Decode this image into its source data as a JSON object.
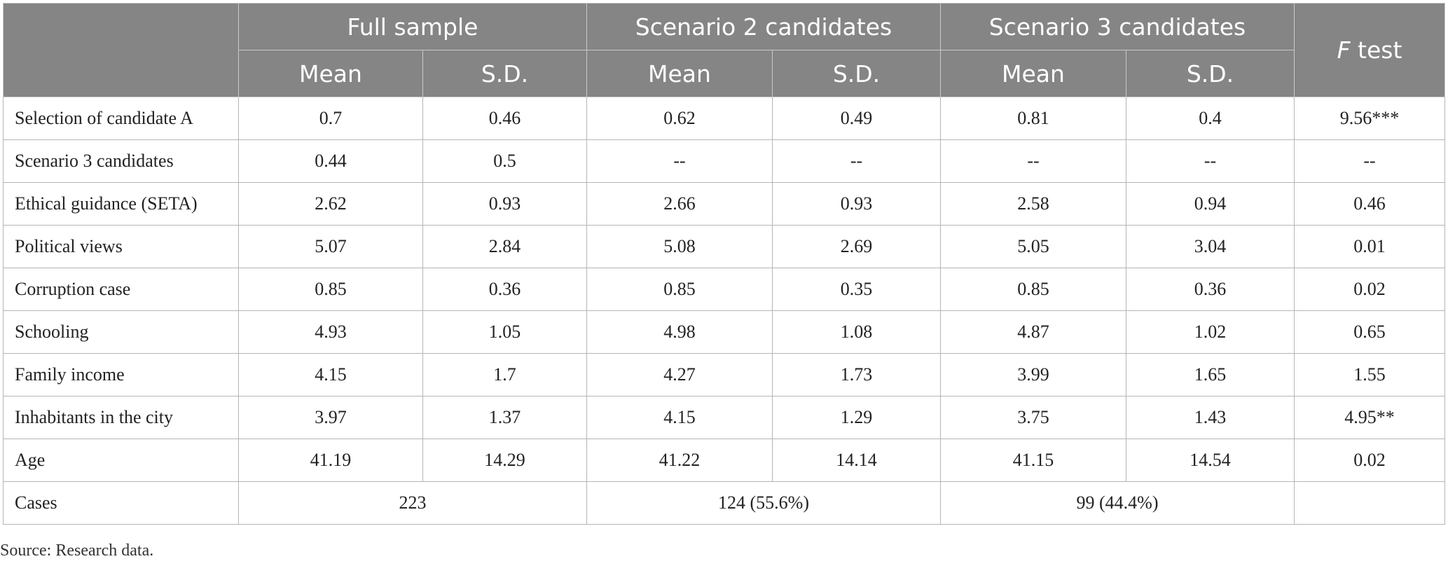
{
  "table": {
    "group_headers": [
      "Full sample",
      "Scenario 2 candidates",
      "Scenario 3 candidates"
    ],
    "ftest_header": {
      "italic_part": "F",
      "rest": " test"
    },
    "sub_headers": [
      "Mean",
      "S.D.",
      "Mean",
      "S.D.",
      "Mean",
      "S.D."
    ],
    "rows": [
      {
        "label": "Selection of candidate A",
        "cells": [
          "0.7",
          "0.46",
          "0.62",
          "0.49",
          "0.81",
          "0.4",
          "9.56***"
        ]
      },
      {
        "label": "Scenario 3 candidates",
        "cells": [
          "0.44",
          "0.5",
          "--",
          "--",
          "--",
          "--",
          "--"
        ]
      },
      {
        "label": "Ethical guidance (SETA)",
        "cells": [
          "2.62",
          "0.93",
          "2.66",
          "0.93",
          "2.58",
          "0.94",
          "0.46"
        ]
      },
      {
        "label": "Political views",
        "cells": [
          "5.07",
          "2.84",
          "5.08",
          "2.69",
          "5.05",
          "3.04",
          "0.01"
        ]
      },
      {
        "label": "Corruption case",
        "cells": [
          "0.85",
          "0.36",
          "0.85",
          "0.35",
          "0.85",
          "0.36",
          "0.02"
        ]
      },
      {
        "label": "Schooling",
        "cells": [
          "4.93",
          "1.05",
          "4.98",
          "1.08",
          "4.87",
          "1.02",
          "0.65"
        ]
      },
      {
        "label": "Family income",
        "cells": [
          "4.15",
          "1.7",
          "4.27",
          "1.73",
          "3.99",
          "1.65",
          "1.55"
        ]
      },
      {
        "label": "Inhabitants in the city",
        "cells": [
          "3.97",
          "1.37",
          "4.15",
          "1.29",
          "3.75",
          "1.43",
          "4.95**"
        ]
      },
      {
        "label": "Age",
        "cells": [
          "41.19",
          "14.29",
          "41.22",
          "14.14",
          "41.15",
          "14.54",
          "0.02"
        ]
      }
    ],
    "cases": {
      "label": "Cases",
      "full": "223",
      "scenario2": "124 (55.6%)",
      "scenario3": "99 (44.4%)",
      "ftest": ""
    }
  },
  "source_note": "Source: Research data.",
  "colors": {
    "header_bg": "#858585",
    "header_text": "#ffffff",
    "grid": "#b5b5b5"
  }
}
